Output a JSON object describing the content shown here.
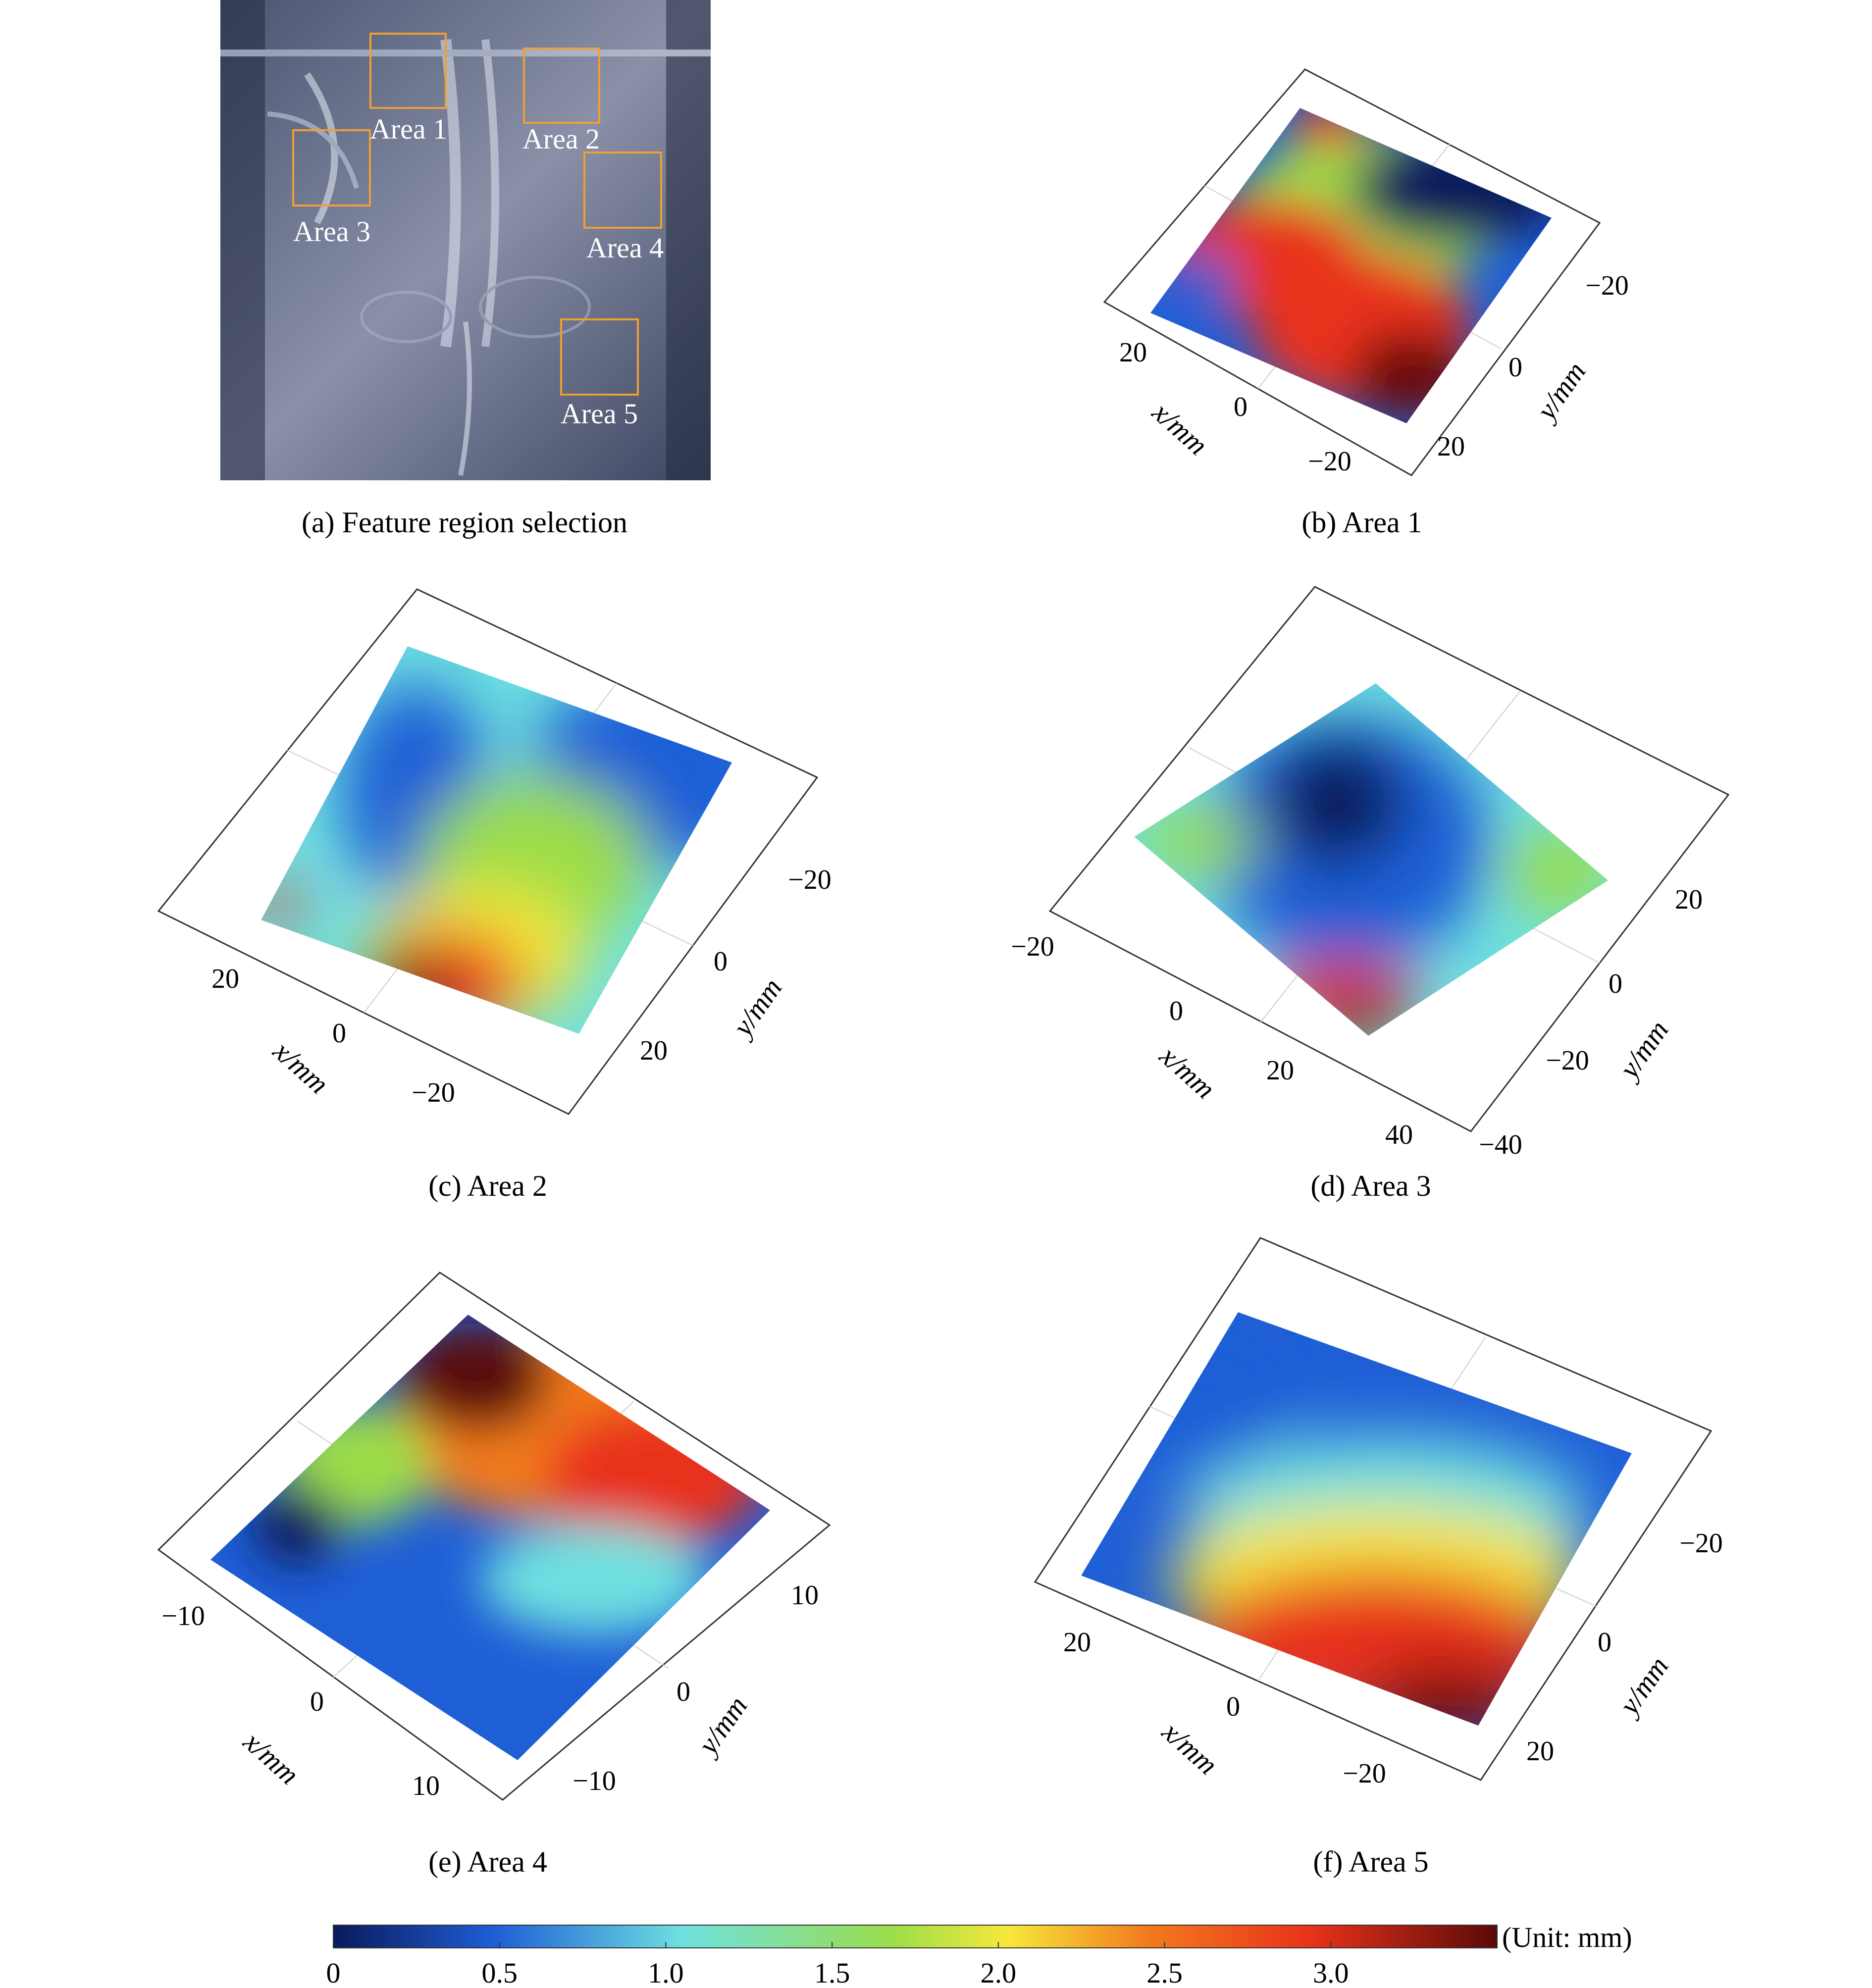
{
  "figure": {
    "panels": [
      {
        "id": "a",
        "caption": "(a) Feature region selection",
        "boxes": [
          "Area 1",
          "Area 2",
          "Area 3",
          "Area 4",
          "Area 5"
        ]
      },
      {
        "id": "b",
        "caption": "(b) Area 1",
        "x_label": "x/mm",
        "y_label": "y/mm",
        "x_ticks": [
          "20",
          "0",
          "−20"
        ],
        "y_ticks": [
          "−20",
          "0",
          "20"
        ]
      },
      {
        "id": "c",
        "caption": "(c) Area 2",
        "x_label": "x/mm",
        "y_label": "y/mm",
        "x_ticks": [
          "20",
          "0",
          "−20"
        ],
        "y_ticks": [
          "−20",
          "0",
          "20"
        ]
      },
      {
        "id": "d",
        "caption": "(d) Area 3",
        "x_label": "x/mm",
        "y_label": "y/mm",
        "x_ticks": [
          "−20",
          "0",
          "20",
          "40"
        ],
        "y_ticks": [
          "20",
          "0",
          "−20",
          "−40"
        ]
      },
      {
        "id": "e",
        "caption": "(e) Area 4",
        "x_label": "x/mm",
        "y_label": "y/mm",
        "x_ticks": [
          "−10",
          "0",
          "10"
        ],
        "y_ticks": [
          "10",
          "0",
          "−10"
        ]
      },
      {
        "id": "f",
        "caption": "(f) Area 5",
        "x_label": "x/mm",
        "y_label": "y/mm",
        "x_ticks": [
          "20",
          "0",
          "−20"
        ],
        "y_ticks": [
          "−20",
          "0",
          "20"
        ]
      }
    ],
    "colorbar": {
      "ticks": [
        "0",
        "0.5",
        "1.0",
        "1.5",
        "2.0",
        "2.5",
        "3.0"
      ],
      "unit_label": "(Unit: mm)",
      "range": [
        0,
        3.5
      ],
      "colors": [
        "#0a1a5c",
        "#1f5fd6",
        "#6ee0e0",
        "#9bdd4a",
        "#f6e83a",
        "#f27a1e",
        "#e8321a",
        "#5a0a08"
      ]
    }
  },
  "chart_data": [
    {
      "type": "heatmap",
      "panel": "b",
      "title": "Area 1",
      "xlabel": "x/mm",
      "ylabel": "y/mm",
      "x_range": [
        -25,
        25
      ],
      "y_range": [
        -25,
        25
      ],
      "z_range_mm": [
        0,
        3.5
      ],
      "grid": true,
      "legend": "shared colorbar at bottom"
    },
    {
      "type": "heatmap",
      "panel": "c",
      "title": "Area 2",
      "xlabel": "x/mm",
      "ylabel": "y/mm",
      "x_range": [
        -25,
        25
      ],
      "y_range": [
        -25,
        25
      ],
      "z_range_mm": [
        0,
        3.5
      ],
      "grid": true
    },
    {
      "type": "heatmap",
      "panel": "d",
      "title": "Area 3",
      "xlabel": "x/mm",
      "ylabel": "y/mm",
      "x_range": [
        -20,
        40
      ],
      "y_range": [
        -40,
        20
      ],
      "z_range_mm": [
        0,
        3.5
      ],
      "grid": true
    },
    {
      "type": "heatmap",
      "panel": "e",
      "title": "Area 4",
      "xlabel": "x/mm",
      "ylabel": "y/mm",
      "x_range": [
        -10,
        10
      ],
      "y_range": [
        -10,
        10
      ],
      "z_range_mm": [
        0,
        3.5
      ],
      "grid": true
    },
    {
      "type": "heatmap",
      "panel": "f",
      "title": "Area 5",
      "xlabel": "x/mm",
      "ylabel": "y/mm",
      "x_range": [
        -25,
        25
      ],
      "y_range": [
        -25,
        25
      ],
      "z_range_mm": [
        0,
        3.5
      ],
      "grid": true
    }
  ]
}
